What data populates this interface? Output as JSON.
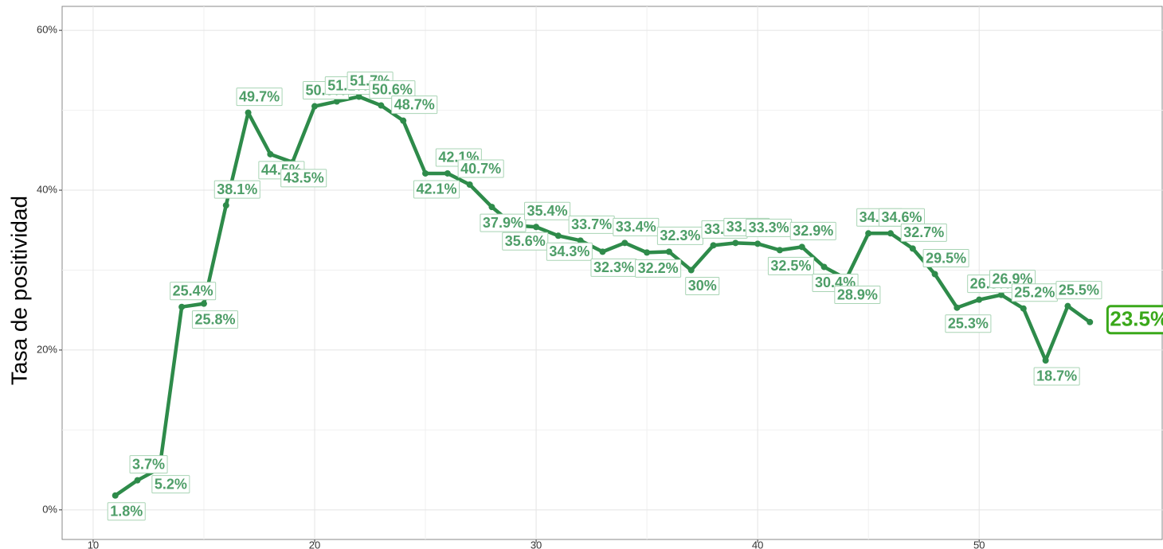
{
  "chart_data": {
    "type": "line",
    "y_label": "Tasa de positividad",
    "x": [
      11,
      12,
      13,
      14,
      15,
      16,
      17,
      18,
      19,
      20,
      21,
      22,
      23,
      24,
      25,
      26,
      27,
      28,
      29,
      30,
      31,
      32,
      33,
      34,
      35,
      36,
      37,
      38,
      39,
      40,
      41,
      42,
      43,
      44,
      45,
      46,
      47,
      48,
      49,
      50,
      51,
      52,
      53,
      54,
      55
    ],
    "series": [
      {
        "name": "Tasa de positividad",
        "color": "#2e8b4a",
        "values": [
          1.8,
          3.7,
          5.2,
          25.4,
          25.8,
          38.1,
          49.7,
          44.5,
          43.5,
          50.5,
          51.1,
          51.7,
          50.6,
          48.7,
          42.1,
          42.1,
          40.7,
          37.9,
          35.6,
          35.4,
          34.3,
          33.7,
          32.3,
          33.4,
          32.2,
          32.3,
          30,
          33.1,
          33.4,
          33.3,
          32.5,
          32.9,
          30.4,
          28.9,
          34.6,
          34.6,
          32.7,
          29.5,
          25.3,
          26.3,
          26.9,
          25.2,
          18.7,
          25.5,
          23.5
        ],
        "value_labels": [
          "1.8%",
          "3.7%",
          "5.2%",
          "25.4%",
          "25.8%",
          "38.1%",
          "49.7%",
          "44.5%",
          "43.5%",
          "50.5%",
          "51.1%",
          "51.7%",
          "50.6%",
          "48.7%",
          "42.1%",
          "42.1%",
          "40.7%",
          "37.9%",
          "35.6%",
          "35.4%",
          "34.3%",
          "33.7%",
          "32.3%",
          "33.4%",
          "32.2%",
          "32.3%",
          "30%",
          "33.1%",
          "33.4%",
          "33.3%",
          "32.5%",
          "32.9%",
          "30.4%",
          "28.9%",
          "34.6%",
          "34.6%",
          "32.7%",
          "29.5%",
          "25.3%",
          "26.3%",
          "26.9%",
          "25.2%",
          "18.7%",
          "25.5%",
          "23.5%"
        ]
      }
    ],
    "xlim": [
      8.6,
      58.3
    ],
    "xticks": [
      10,
      20,
      30,
      40,
      50
    ],
    "ylim": [
      -3.7,
      63
    ],
    "yticks": [
      {
        "value": 0,
        "label": "0%"
      },
      {
        "value": 20,
        "label": "20%"
      },
      {
        "value": 40,
        "label": "40%"
      },
      {
        "value": 60,
        "label": "60%"
      }
    ],
    "grid": true
  }
}
